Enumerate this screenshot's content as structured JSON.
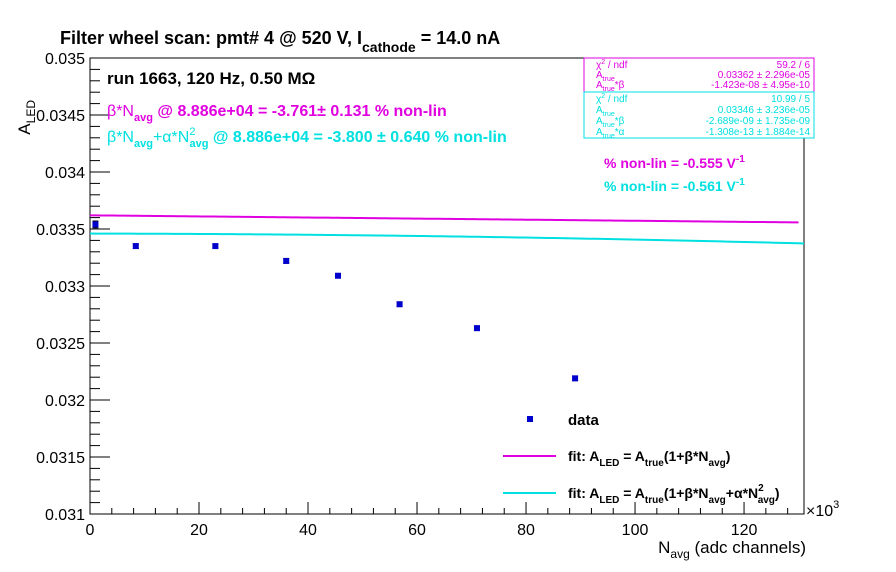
{
  "chart_data": {
    "type": "scatter",
    "title": {
      "main": "Filter wheel scan: pmt#   4 @   520 V, I",
      "sub": "cathode",
      "tail": " = 14.0 nA"
    },
    "run_label": "run 1663, 120 Hz, 0.50 MΩ",
    "xlabel": {
      "main": "N",
      "sub": "avg",
      "tail": " (adc channels)"
    },
    "ylabel": {
      "main": "A",
      "sub": "LED"
    },
    "x_multiplier": {
      "base": "×10",
      "exp": "3"
    },
    "xlim": [
      0,
      131000
    ],
    "ylim": [
      0.031,
      0.035
    ],
    "x_ticks": [
      0,
      20000,
      40000,
      60000,
      80000,
      100000,
      120000
    ],
    "x_tick_labels": [
      "0",
      "20",
      "40",
      "60",
      "80",
      "100",
      "120"
    ],
    "y_ticks": [
      0.031,
      0.0315,
      0.032,
      0.0325,
      0.033,
      0.0335,
      0.034,
      0.0345,
      0.035
    ],
    "y_tick_labels": [
      "0.031",
      "0.0315",
      "0.032",
      "0.0325",
      "0.033",
      "0.0335",
      "0.034",
      "0.0345",
      "0.035"
    ],
    "series": [
      {
        "name": "data",
        "color": "#0000cc",
        "points": [
          {
            "x": 1000,
            "y": 0.03354,
            "err": 3e-05
          },
          {
            "x": 8400,
            "y": 0.03335,
            "err": 2e-05
          },
          {
            "x": 23000,
            "y": 0.03335,
            "err": 1.5e-05
          },
          {
            "x": 36000,
            "y": 0.03322,
            "err": 2e-05
          },
          {
            "x": 45500,
            "y": 0.03309,
            "err": 1.5e-05
          },
          {
            "x": 56800,
            "y": 0.03284,
            "err": 2e-05
          },
          {
            "x": 71000,
            "y": 0.03263,
            "err": 2e-05
          },
          {
            "x": 89000,
            "y": 0.03219,
            "err": 2e-05
          }
        ]
      }
    ],
    "fits": [
      {
        "color": "#e000e0",
        "type": "linear",
        "A_true": 0.03362,
        "beta": -1.423e-08,
        "x_range": [
          0,
          130000
        ]
      },
      {
        "color": "#00e0e0",
        "type": "quadratic",
        "A_true": 0.03346,
        "beta": -2.689e-09,
        "alpha": -1.308e-13,
        "x_range": [
          0,
          131000
        ]
      }
    ],
    "annotations": {
      "lin": {
        "beta": "β*N",
        "avg": "avg",
        "rest": " @ 8.886e+04 = -3.761± 0.131 % non-lin"
      },
      "quad": {
        "beta": "β*N",
        "avg": "avg",
        "plus": "+α*N",
        "sup": "2",
        "avg2": "avg",
        "rest": " @ 8.886e+04 = -3.800 ± 0.640 % non-lin"
      },
      "pct_lin": {
        "text": "% non-lin = -0.555 V",
        "sup": "-1"
      },
      "pct_quad": {
        "text": "% non-lin = -0.561 V",
        "sup": "-1"
      }
    },
    "stats_boxes": [
      {
        "color": "#e000e0",
        "rows": [
          {
            "label": "χ",
            "sup": "2",
            "label_tail": " / ndf",
            "value": "59.2 / 6"
          },
          {
            "label": "A",
            "sub": "true",
            "value": "0.03362 ± 2.296e-05"
          },
          {
            "label": "A",
            "sub": "true",
            "label_tail": "*β",
            "value": "-1.423e-08 ± 4.95e-10"
          }
        ]
      },
      {
        "color": "#00e0e0",
        "rows": [
          {
            "label": "χ",
            "sup": "2",
            "label_tail": " / ndf",
            "value": "10.99 / 5"
          },
          {
            "label": "A",
            "sub": "true",
            "value": "0.03346 ± 3.236e-05"
          },
          {
            "label": "A",
            "sub": "true",
            "label_tail": "*β",
            "value": "-2.689e-09 ± 1.735e-09"
          },
          {
            "label": "A",
            "sub": "true",
            "label_tail": "*α",
            "value": "-1.308e-13 ± 1.884e-14"
          }
        ]
      }
    ],
    "legend": {
      "placement": "bottom-right",
      "entries": [
        {
          "kind": "marker",
          "label": "data"
        },
        {
          "kind": "line",
          "color": "#e000e0",
          "label": "fit: A_LED = A_true(1+β*N_avg)"
        },
        {
          "kind": "line",
          "color": "#00e0e0",
          "label": "fit: A_LED = A_true(1+β*N_avg+α*N²_avg)"
        }
      ]
    }
  }
}
